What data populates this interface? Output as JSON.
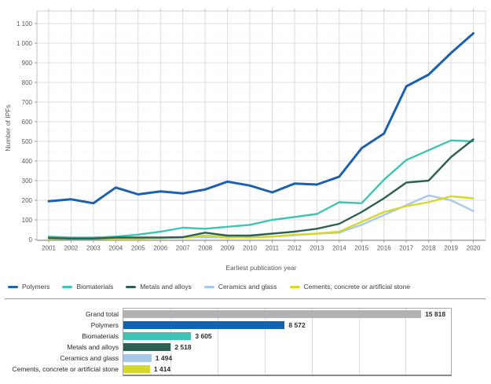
{
  "chart_data": [
    {
      "type": "line",
      "title": "",
      "xlabel": "Earliest publication year",
      "ylabel": "Number of IPFs",
      "x": [
        2001,
        2002,
        2003,
        2004,
        2005,
        2006,
        2007,
        2008,
        2009,
        2010,
        2011,
        2012,
        2013,
        2014,
        2015,
        2016,
        2017,
        2018,
        2019,
        2020
      ],
      "ylim": [
        0,
        1100
      ],
      "ytick_interval": 100,
      "grid": true,
      "legend_position": "bottom",
      "series": [
        {
          "name": "Polymers",
          "color": "#1d60ac",
          "stroke_width": 3,
          "values": [
            195,
            205,
            185,
            265,
            230,
            245,
            235,
            255,
            295,
            275,
            240,
            285,
            280,
            320,
            465,
            540,
            780,
            840,
            950,
            1050
          ]
        },
        {
          "name": "Biomaterials",
          "color": "#3fc3b5",
          "stroke_width": 2.4,
          "values": [
            15,
            10,
            10,
            15,
            25,
            40,
            60,
            55,
            65,
            75,
            100,
            115,
            130,
            190,
            185,
            305,
            405,
            455,
            505,
            500
          ]
        },
        {
          "name": "Metals and alloys",
          "color": "#2e6054",
          "stroke_width": 2.4,
          "values": [
            8,
            5,
            5,
            10,
            10,
            10,
            12,
            35,
            20,
            20,
            30,
            40,
            55,
            80,
            140,
            210,
            290,
            300,
            420,
            510
          ]
        },
        {
          "name": "Ceramics and glass",
          "color": "#a7c8ec",
          "stroke_width": 2.4,
          "values": [
            5,
            4,
            4,
            5,
            6,
            8,
            10,
            12,
            10,
            12,
            15,
            22,
            30,
            35,
            75,
            125,
            175,
            225,
            200,
            145
          ]
        },
        {
          "name": "Cements, concrete or artificial stone",
          "color": "#d6d82c",
          "stroke_width": 2.4,
          "values": [
            3,
            3,
            3,
            5,
            5,
            8,
            10,
            20,
            12,
            10,
            15,
            25,
            30,
            40,
            90,
            140,
            170,
            190,
            220,
            210
          ]
        }
      ],
      "draw_order": [
        3,
        4,
        1,
        2,
        0
      ]
    },
    {
      "type": "bar",
      "orientation": "horizontal",
      "categories": [
        "Grand total",
        "Polymers",
        "Biomaterials",
        "Metals and alloys",
        "Ceramics and glass",
        "Cements, concrete or artificial stone"
      ],
      "values": [
        15818,
        8572,
        3605,
        2518,
        1494,
        1414
      ],
      "value_labels": [
        "15 818",
        "8 572",
        "3 605",
        "2 518",
        "1 494",
        "1 414"
      ],
      "colors": [
        "#b2b2b5",
        "#0f63b5",
        "#3fc3b5",
        "#2e6054",
        "#a7c8ec",
        "#d6d82c"
      ],
      "xlim": [
        0,
        17400
      ],
      "grid_interval": 2500
    }
  ]
}
